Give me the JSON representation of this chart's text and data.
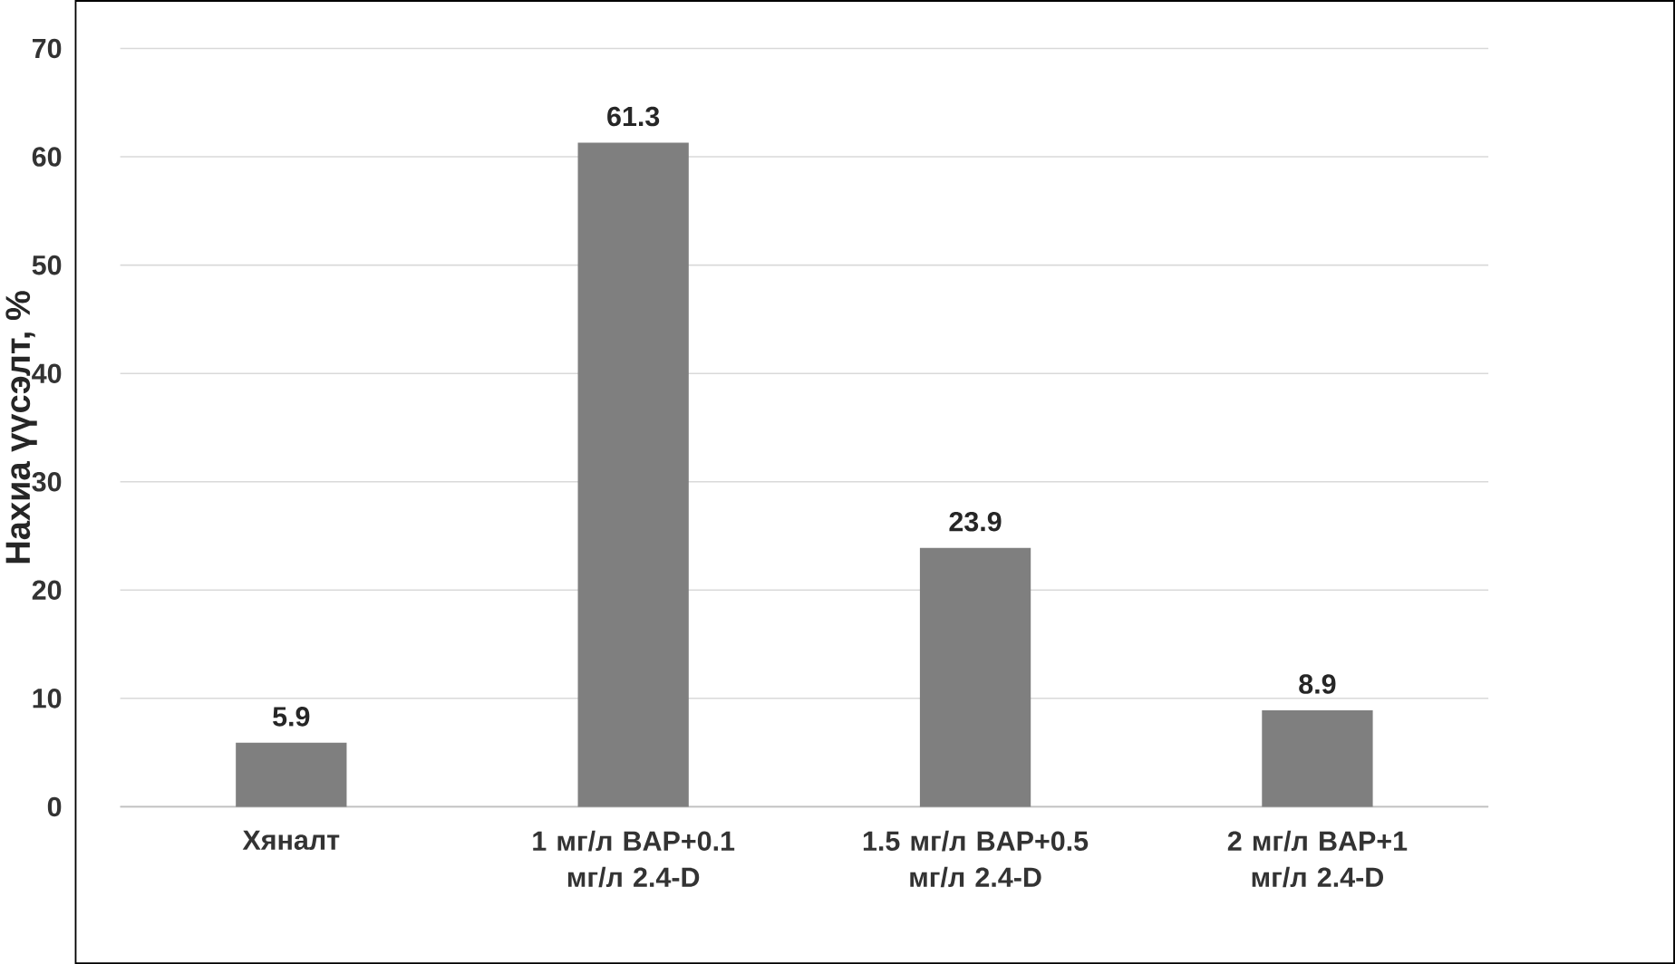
{
  "chart_data": {
    "type": "bar",
    "ylabel": "Нахиа үүсэлт, %",
    "categories": [
      "Хяналт",
      "1 мг/л BAP+0.1 мг/л 2.4-D",
      "1.5 мг/л BAP+0.5 мг/л 2.4-D",
      "2 мг/л BAP+1 мг/л 2.4-D"
    ],
    "values": [
      5.9,
      61.3,
      23.9,
      8.9
    ],
    "color": "#7f7f7f",
    "ylim": [
      0,
      70
    ],
    "yticks": [
      0,
      10,
      20,
      30,
      40,
      50,
      60,
      70
    ],
    "grid": "y",
    "data_labels": true
  }
}
